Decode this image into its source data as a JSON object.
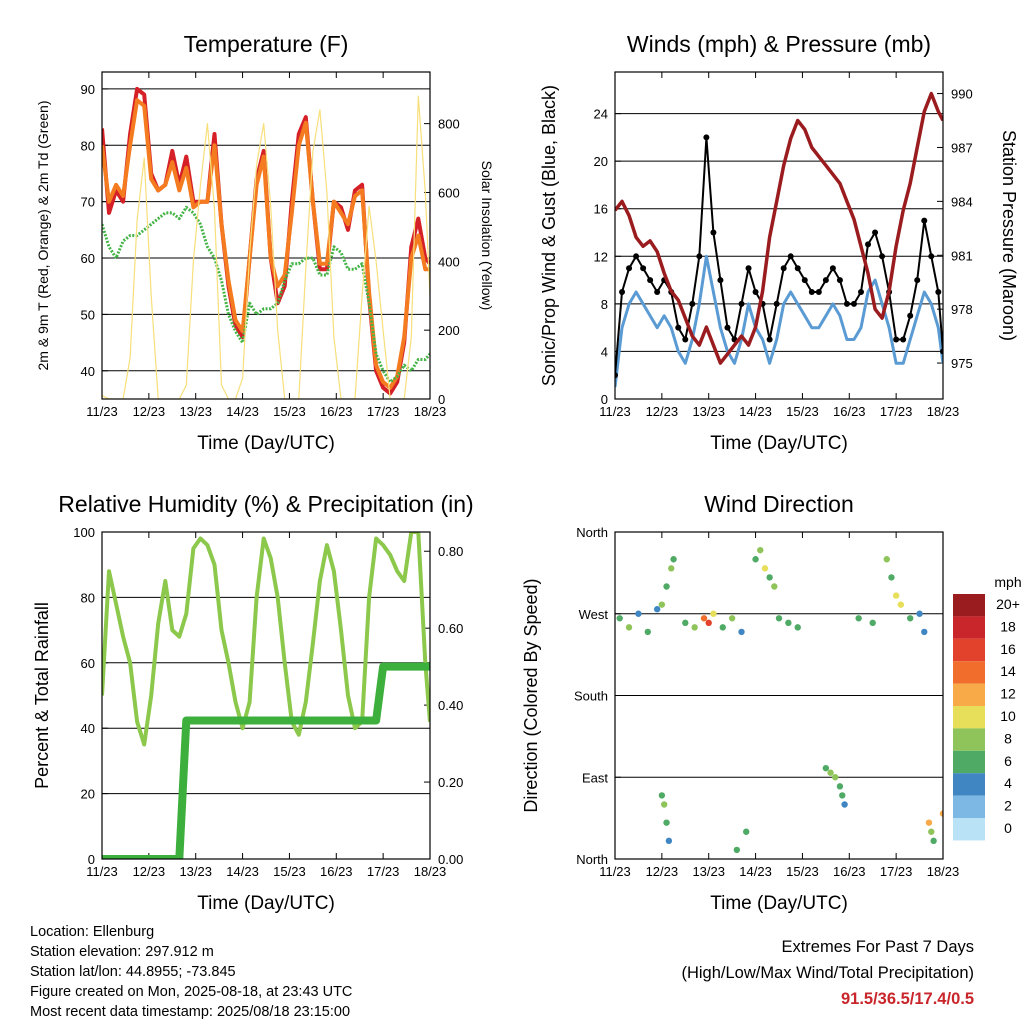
{
  "panels": {
    "temperature": {
      "title": "Temperature (F)",
      "ylabel_left": "2m & 9m T (Red, Orange) & 2m Td (Green)",
      "ylabel_right": "Solar Insolation (Yellow)",
      "xlabel": "Time (Day/UTC)"
    },
    "winds": {
      "title": "Winds (mph) & Pressure (mb)",
      "ylabel_left": "Sonic/Prop Wind & Gust (Blue, Black)",
      "ylabel_right": "Station Pressure (Maroon)",
      "xlabel": "Time (Day/UTC)"
    },
    "humidity": {
      "title": "Relative Humidity (%) & Precipitation (in)",
      "ylabel_left": "Percent & Total Rainfall",
      "xlabel": "Time (Day/UTC)"
    },
    "direction": {
      "title": "Wind Direction",
      "ylabel_left": "Direction (Colored By Speed)",
      "xlabel": "Time (Day/UTC)",
      "legend_title": "mph"
    }
  },
  "chart_data": [
    {
      "type": "line",
      "title": "Temperature (F)",
      "xlabel": "Time (Day/UTC)",
      "ylabel": "2m & 9m T (Red, Orange) & 2m Td (Green)",
      "y2label": "Solar Insolation (Yellow)",
      "x_ticks": [
        "11/23",
        "12/23",
        "13/23",
        "14/23",
        "15/23",
        "16/23",
        "17/23",
        "18/23"
      ],
      "ylim": [
        35,
        93
      ],
      "y_ticks": [
        40,
        50,
        60,
        70,
        80,
        90
      ],
      "y2lim": [
        0,
        950
      ],
      "y2_ticks": [
        0,
        200,
        400,
        600,
        800
      ],
      "grid": true,
      "x": [
        0,
        0.15,
        0.3,
        0.45,
        0.6,
        0.75,
        0.9,
        1.05,
        1.2,
        1.35,
        1.5,
        1.65,
        1.8,
        1.95,
        2.1,
        2.25,
        2.4,
        2.55,
        2.7,
        2.85,
        3.0,
        3.15,
        3.3,
        3.45,
        3.6,
        3.75,
        3.9,
        4.05,
        4.2,
        4.35,
        4.5,
        4.65,
        4.8,
        4.95,
        5.1,
        5.25,
        5.4,
        5.55,
        5.7,
        5.85,
        6.0,
        6.15,
        6.3,
        6.45,
        6.6,
        6.75,
        6.9,
        7.0
      ],
      "series": [
        {
          "name": "2m T",
          "color": "#d62027",
          "values": [
            83,
            68,
            72,
            70,
            82,
            90,
            89,
            75,
            72,
            73,
            79,
            73,
            78,
            70,
            70,
            70,
            82,
            66,
            55,
            48,
            46,
            60,
            74,
            79,
            60,
            52,
            55,
            70,
            82,
            85,
            70,
            58,
            58,
            70,
            69,
            65,
            72,
            73,
            53,
            40,
            37,
            36,
            38,
            45,
            62,
            67,
            60,
            59
          ]
        },
        {
          "name": "9m T",
          "color": "#f47b20",
          "values": [
            80,
            70,
            73,
            71,
            80,
            88,
            87,
            74,
            72,
            73,
            77,
            72,
            76,
            69,
            70,
            70,
            80,
            66,
            56,
            49,
            47,
            60,
            73,
            78,
            60,
            55,
            57,
            68,
            80,
            84,
            70,
            59,
            59,
            70,
            68,
            66,
            71,
            72,
            54,
            41,
            38,
            37,
            39,
            46,
            60,
            64,
            58,
            58
          ]
        },
        {
          "name": "2m Td",
          "color": "#45b446",
          "values": [
            66,
            62,
            60,
            63,
            64,
            64,
            65,
            66,
            67,
            68,
            68,
            67,
            69,
            68,
            66,
            62,
            60,
            56,
            50,
            47,
            45,
            52,
            50,
            51,
            51,
            52,
            56,
            59,
            59,
            60,
            60,
            57,
            57,
            62,
            61,
            58,
            58,
            59,
            52,
            43,
            40,
            38,
            39,
            41,
            40,
            42,
            42,
            43
          ]
        },
        {
          "name": "Solar Insolation",
          "color": "#f7df7a",
          "axis": "y2",
          "values": [
            10,
            0,
            0,
            0,
            120,
            520,
            700,
            300,
            0,
            0,
            0,
            0,
            40,
            400,
            620,
            800,
            550,
            40,
            0,
            0,
            60,
            420,
            680,
            800,
            560,
            200,
            0,
            0,
            0,
            380,
            720,
            840,
            600,
            180,
            0,
            0,
            0,
            300,
            560,
            400,
            200,
            0,
            0,
            0,
            180,
            880,
            600,
            300
          ]
        }
      ]
    },
    {
      "type": "line",
      "title": "Winds (mph) & Pressure (mb)",
      "xlabel": "Time (Day/UTC)",
      "ylabel": "Sonic/Prop Wind & Gust (Blue, Black)",
      "y2label": "Station Pressure (Maroon)",
      "x_ticks": [
        "11/23",
        "12/23",
        "13/23",
        "14/23",
        "15/23",
        "16/23",
        "17/23",
        "18/23"
      ],
      "ylim": [
        0,
        27.5
      ],
      "y_ticks": [
        0,
        4,
        8,
        12,
        16,
        20,
        24
      ],
      "y2lim": [
        973.0,
        991.2
      ],
      "y2_ticks": [
        975,
        978,
        981,
        984,
        987,
        990
      ],
      "grid": true,
      "x": [
        0,
        0.15,
        0.3,
        0.45,
        0.6,
        0.75,
        0.9,
        1.05,
        1.2,
        1.35,
        1.5,
        1.65,
        1.8,
        1.95,
        2.1,
        2.25,
        2.4,
        2.55,
        2.7,
        2.85,
        3.0,
        3.15,
        3.3,
        3.45,
        3.6,
        3.75,
        3.9,
        4.05,
        4.2,
        4.35,
        4.5,
        4.65,
        4.8,
        4.95,
        5.1,
        5.25,
        5.4,
        5.55,
        5.7,
        5.85,
        6.0,
        6.15,
        6.3,
        6.45,
        6.6,
        6.75,
        6.9,
        7.0
      ],
      "series": [
        {
          "name": "Wind",
          "color": "#5a9bd4",
          "values": [
            1,
            6,
            8,
            9,
            8,
            7,
            6,
            7,
            6,
            4,
            3,
            5,
            8,
            12,
            9,
            6,
            4,
            3,
            5,
            8,
            6,
            5,
            3,
            5,
            8,
            9,
            8,
            7,
            6,
            6,
            7,
            8,
            7,
            5,
            5,
            6,
            9,
            10,
            8,
            6,
            3,
            3,
            5,
            7,
            9,
            8,
            6,
            3
          ]
        },
        {
          "name": "Gust",
          "color": "#000000",
          "values": [
            2,
            9,
            11,
            12,
            11,
            10,
            9,
            10,
            9,
            6,
            5,
            8,
            12,
            22,
            14,
            10,
            6,
            5,
            8,
            11,
            9,
            8,
            5,
            8,
            11,
            12,
            11,
            10,
            9,
            9,
            10,
            11,
            10,
            8,
            8,
            9,
            13,
            14,
            12,
            9,
            5,
            5,
            7,
            10,
            15,
            12,
            9,
            4
          ]
        },
        {
          "name": "Station Pressure",
          "color": "#9b1c1f",
          "axis": "y2",
          "values": [
            983.5,
            984.0,
            983.2,
            982.0,
            981.5,
            981.8,
            981.2,
            980.0,
            979.0,
            978.5,
            977.5,
            976.5,
            976.0,
            977.0,
            976.0,
            975.0,
            975.5,
            976.0,
            976.5,
            976.0,
            977.0,
            979.0,
            982.0,
            984.0,
            986.0,
            987.5,
            988.5,
            988.0,
            987.0,
            986.5,
            986.0,
            985.5,
            985.0,
            984.0,
            983.0,
            981.5,
            980.0,
            978.0,
            977.5,
            979.0,
            981.5,
            983.5,
            985.0,
            987.0,
            989.0,
            990.0,
            989.0,
            988.5
          ]
        }
      ]
    },
    {
      "type": "line",
      "title": "Relative Humidity (%) & Precipitation (in)",
      "xlabel": "Time (Day/UTC)",
      "ylabel": "Percent & Total Rainfall",
      "x_ticks": [
        "11/23",
        "12/23",
        "13/23",
        "14/23",
        "15/23",
        "16/23",
        "17/23",
        "18/23"
      ],
      "ylim": [
        0,
        100
      ],
      "y_ticks": [
        0,
        20,
        40,
        60,
        80,
        100
      ],
      "y2lim": [
        0,
        0.85
      ],
      "y2_ticks": [
        "0.00",
        "0.20",
        "0.40",
        "0.60",
        "0.80"
      ],
      "grid": true,
      "x": [
        0,
        0.15,
        0.3,
        0.45,
        0.6,
        0.75,
        0.9,
        1.05,
        1.2,
        1.35,
        1.5,
        1.65,
        1.8,
        1.95,
        2.1,
        2.25,
        2.4,
        2.55,
        2.7,
        2.85,
        3.0,
        3.15,
        3.3,
        3.45,
        3.6,
        3.75,
        3.9,
        4.05,
        4.2,
        4.35,
        4.5,
        4.65,
        4.8,
        4.95,
        5.1,
        5.25,
        5.4,
        5.55,
        5.7,
        5.85,
        6.0,
        6.15,
        6.3,
        6.45,
        6.6,
        6.75,
        6.9,
        7.0
      ],
      "series": [
        {
          "name": "Relative Humidity",
          "color": "#8cc84b",
          "values": [
            50,
            88,
            78,
            68,
            60,
            42,
            35,
            50,
            72,
            85,
            70,
            68,
            75,
            95,
            98,
            96,
            90,
            70,
            60,
            48,
            40,
            48,
            80,
            98,
            92,
            80,
            60,
            42,
            38,
            48,
            66,
            85,
            96,
            88,
            70,
            50,
            40,
            42,
            80,
            98,
            96,
            93,
            88,
            85,
            100,
            100,
            60,
            42
          ]
        },
        {
          "name": "Total Precipitation",
          "color": "#3daf3d",
          "axis": "y2",
          "values": [
            0,
            0,
            0,
            0,
            0,
            0,
            0,
            0,
            0,
            0,
            0,
            0,
            0.36,
            0.36,
            0.36,
            0.36,
            0.36,
            0.36,
            0.36,
            0.36,
            0.36,
            0.36,
            0.36,
            0.36,
            0.36,
            0.36,
            0.36,
            0.36,
            0.36,
            0.36,
            0.36,
            0.36,
            0.36,
            0.36,
            0.36,
            0.36,
            0.36,
            0.36,
            0.36,
            0.36,
            0.5,
            0.5,
            0.5,
            0.5,
            0.5,
            0.5,
            0.5,
            0.5
          ]
        }
      ]
    },
    {
      "type": "scatter",
      "title": "Wind Direction",
      "xlabel": "Time (Day/UTC)",
      "ylabel": "Direction (Colored By Speed)",
      "x_ticks": [
        "11/23",
        "12/23",
        "13/23",
        "14/23",
        "15/23",
        "16/23",
        "17/23",
        "18/23"
      ],
      "y_ticks": [
        "North",
        "East",
        "South",
        "West",
        "North"
      ],
      "ylim": [
        0,
        360
      ],
      "grid": true,
      "colorbar": {
        "title": "mph",
        "labels": [
          "20+",
          "18",
          "16",
          "14",
          "12",
          "10",
          "8",
          "6",
          "4",
          "2",
          "0"
        ],
        "colors": [
          "#9b1c1f",
          "#c8262b",
          "#e2412c",
          "#f16d2c",
          "#f8a948",
          "#e7df5a",
          "#8fc45a",
          "#4eaa64",
          "#3f86c2",
          "#7db7e4",
          "#b9e2f7"
        ]
      },
      "points": [
        [
          0.1,
          265,
          6
        ],
        [
          0.3,
          255,
          8
        ],
        [
          0.5,
          270,
          4
        ],
        [
          0.7,
          250,
          6
        ],
        [
          0.9,
          275,
          3
        ],
        [
          1.0,
          280,
          7
        ],
        [
          1.1,
          300,
          5
        ],
        [
          1.2,
          320,
          8
        ],
        [
          1.25,
          330,
          6
        ],
        [
          1.5,
          260,
          5
        ],
        [
          1.7,
          255,
          7
        ],
        [
          1.9,
          265,
          13
        ],
        [
          2.0,
          260,
          16
        ],
        [
          2.1,
          270,
          9
        ],
        [
          2.3,
          255,
          6
        ],
        [
          2.5,
          265,
          8
        ],
        [
          2.7,
          250,
          4
        ],
        [
          1.0,
          70,
          6
        ],
        [
          1.05,
          60,
          7
        ],
        [
          1.1,
          40,
          5
        ],
        [
          1.15,
          20,
          4
        ],
        [
          2.6,
          10,
          5
        ],
        [
          2.8,
          30,
          6
        ],
        [
          3.0,
          330,
          5
        ],
        [
          3.1,
          340,
          7
        ],
        [
          3.2,
          320,
          9
        ],
        [
          3.3,
          310,
          6
        ],
        [
          3.4,
          300,
          8
        ],
        [
          3.5,
          265,
          5
        ],
        [
          3.7,
          260,
          6
        ],
        [
          3.9,
          255,
          5
        ],
        [
          4.5,
          100,
          5
        ],
        [
          4.6,
          95,
          7
        ],
        [
          4.7,
          90,
          8
        ],
        [
          4.8,
          80,
          6
        ],
        [
          4.85,
          70,
          5
        ],
        [
          4.9,
          60,
          4
        ],
        [
          5.2,
          265,
          6
        ],
        [
          5.5,
          260,
          5
        ],
        [
          5.8,
          330,
          7
        ],
        [
          5.9,
          310,
          6
        ],
        [
          6.0,
          290,
          10
        ],
        [
          6.1,
          280,
          9
        ],
        [
          6.3,
          265,
          5
        ],
        [
          6.5,
          270,
          4
        ],
        [
          6.6,
          250,
          3
        ],
        [
          6.7,
          40,
          12
        ],
        [
          6.75,
          30,
          8
        ],
        [
          6.8,
          20,
          6
        ],
        [
          7.0,
          50,
          11
        ],
        [
          7.1,
          35,
          9
        ],
        [
          7.2,
          10,
          6
        ],
        [
          7.3,
          355,
          4
        ]
      ]
    }
  ],
  "footer": {
    "location": "Location: Ellenburg",
    "elevation": "Station elevation: 297.912 m",
    "latlon": "Station lat/lon: 44.8955; -73.845",
    "created": "Figure created on Mon, 2025-08-18, at 23:43 UTC",
    "recent": "Most recent data timestamp: 2025/08/18 23:15:00"
  },
  "extremes": {
    "title": "Extremes For Past 7 Days",
    "subtitle": "(High/Low/Max Wind/Total Precipitation)",
    "values": "91.5/36.5/17.4/0.5"
  }
}
